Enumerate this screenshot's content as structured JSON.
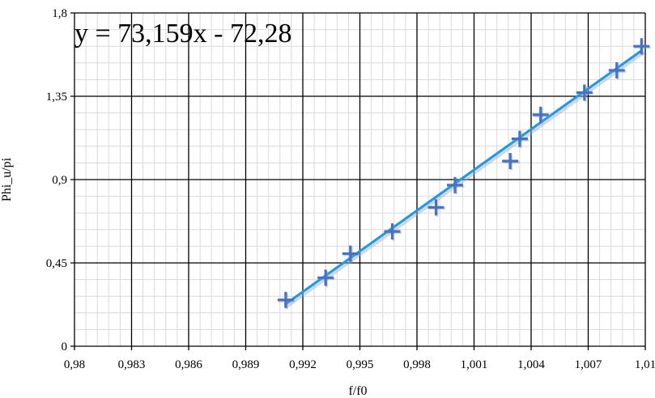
{
  "chart_data": {
    "type": "scatter",
    "xlabel": "f/f0",
    "ylabel": "Phi_u/pi",
    "xlim": [
      0.98,
      1.01
    ],
    "ylim": [
      0,
      1.8
    ],
    "x_ticks": [
      "0,98",
      "0,983",
      "0,986",
      "0,989",
      "0,992",
      "0,995",
      "0,998",
      "1,001",
      "1,004",
      "1,007",
      "1,01"
    ],
    "y_ticks": [
      "0",
      "0,45",
      "0,9",
      "1,35",
      "1,8"
    ],
    "x_minor_step": 0.0006,
    "y_minor_step": 0.09,
    "grid": true,
    "series": [
      {
        "marker": "plus",
        "color": "#4472C4",
        "x": [
          0.9911,
          0.9932,
          0.9945,
          0.9967,
          0.999,
          1.0,
          1.0029,
          1.0034,
          1.0045,
          1.0068,
          1.0085,
          1.0098
        ],
        "y": [
          0.25,
          0.37,
          0.5,
          0.62,
          0.75,
          0.87,
          1.0,
          1.12,
          1.25,
          1.37,
          1.49,
          1.62
        ]
      }
    ],
    "trendline": {
      "color": "#1E9BE8",
      "slope": 73.159,
      "intercept": -72.28,
      "x_range": [
        0.9911,
        1.0098
      ],
      "equation": "y = 73,159x - 72,28"
    }
  }
}
